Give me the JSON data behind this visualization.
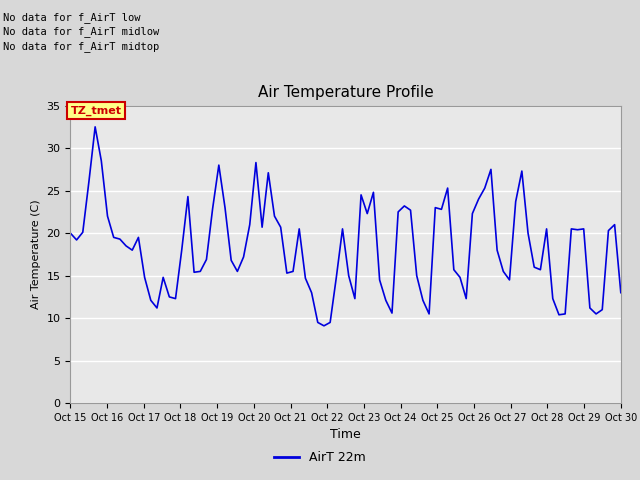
{
  "title": "Air Temperature Profile",
  "xlabel": "Time",
  "ylabel": "Air Temperature (C)",
  "ylim": [
    0,
    35
  ],
  "line_color": "#0000dd",
  "line_width": 1.2,
  "bg_color": "#d8d8d8",
  "plot_bg_color": "#e8e8e8",
  "grid_color": "#ffffff",
  "annotations_left": [
    "No data for f_AirT low",
    "No data for f_AirT midlow",
    "No data for f_AirT midtop"
  ],
  "legend_label": "AirT 22m",
  "tz_label": "TZ_tmet",
  "x_tick_labels": [
    "Oct 15",
    "Oct 16",
    "Oct 17",
    "Oct 18",
    "Oct 19",
    "Oct 20",
    "Oct 21",
    "Oct 22",
    "Oct 23",
    "Oct 24",
    "Oct 25",
    "Oct 26",
    "Oct 27",
    "Oct 28",
    "Oct 29",
    "Oct 30"
  ],
  "temperature_data": [
    20.0,
    19.2,
    20.1,
    26.1,
    32.5,
    28.5,
    22.0,
    19.5,
    19.3,
    18.5,
    18.0,
    19.5,
    14.8,
    12.1,
    11.2,
    14.8,
    12.5,
    12.3,
    18.0,
    24.3,
    15.4,
    15.5,
    16.9,
    22.9,
    28.0,
    23.0,
    16.8,
    15.5,
    17.2,
    21.0,
    28.3,
    20.7,
    27.1,
    22.0,
    20.7,
    15.3,
    15.5,
    20.5,
    14.7,
    13.0,
    9.5,
    9.1,
    9.5,
    14.8,
    20.5,
    15.0,
    12.3,
    24.5,
    22.3,
    24.8,
    14.5,
    12.1,
    10.6,
    22.5,
    23.2,
    22.7,
    15.0,
    12.1,
    10.5,
    23.0,
    22.8,
    25.3,
    15.7,
    14.8,
    12.3,
    22.3,
    24.0,
    25.3,
    27.5,
    18.0,
    15.5,
    14.5,
    23.7,
    27.3,
    20.0,
    16.0,
    15.7,
    20.5,
    12.3,
    10.4,
    10.5,
    20.5,
    20.4,
    20.5,
    11.2,
    10.5,
    11.0,
    20.3,
    21.0,
    13.0
  ]
}
